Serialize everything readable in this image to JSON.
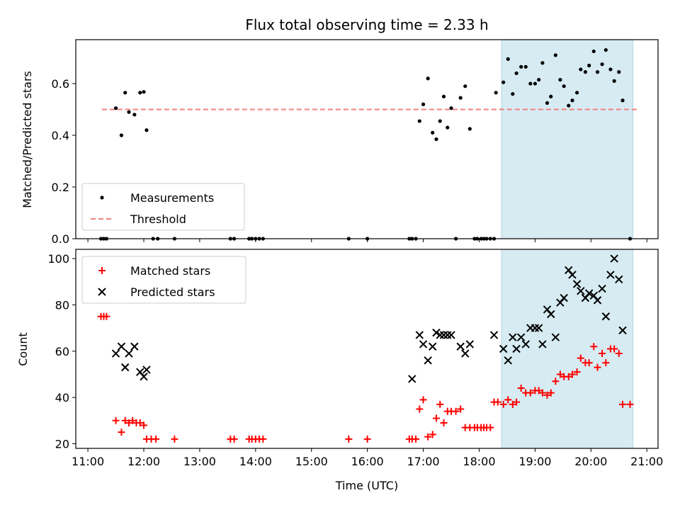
{
  "chart_data": [
    {
      "type": "scatter",
      "title": "Flux total observing time = 2.33 h",
      "xlabel": "",
      "ylabel": "Matched/Predicted stars",
      "xlim": [
        "10:47",
        "21:12"
      ],
      "ylim": [
        0,
        0.77
      ],
      "yticks": [
        0.0,
        0.2,
        0.4,
        0.6
      ],
      "ytick_labels": [
        "0.0",
        "0.2",
        "0.4",
        "0.6"
      ],
      "highlight_span": [
        "18:24",
        "20:45"
      ],
      "threshold": {
        "value": 0.5,
        "x_range": [
          "11:15",
          "20:50"
        ]
      },
      "legend_position": "lower-left",
      "series": [
        {
          "name": "Measurements",
          "marker": "dot",
          "color": "#000000",
          "points": [
            [
              "11:14",
              0
            ],
            [
              "11:17",
              0
            ],
            [
              "11:20",
              0
            ],
            [
              "11:30",
              0.505
            ],
            [
              "11:36",
              0.4
            ],
            [
              "11:40",
              0.565
            ],
            [
              "11:44",
              0.49
            ],
            [
              "11:50",
              0.48
            ],
            [
              "11:56",
              0.565
            ],
            [
              "12:00",
              0.568
            ],
            [
              "12:03",
              0.42
            ],
            [
              "12:10",
              0
            ],
            [
              "12:15",
              0
            ],
            [
              "12:33",
              0
            ],
            [
              "13:33",
              0
            ],
            [
              "13:37",
              0
            ],
            [
              "13:53",
              0
            ],
            [
              "13:56",
              0
            ],
            [
              "14:00",
              0
            ],
            [
              "14:04",
              0
            ],
            [
              "14:08",
              0
            ],
            [
              "15:40",
              0
            ],
            [
              "16:00",
              0
            ],
            [
              "16:45",
              0
            ],
            [
              "16:48",
              0
            ],
            [
              "16:52",
              0
            ],
            [
              "16:56",
              0.455
            ],
            [
              "17:00",
              0.52
            ],
            [
              "17:05",
              0.62
            ],
            [
              "17:10",
              0.41
            ],
            [
              "17:14",
              0.385
            ],
            [
              "17:18",
              0.455
            ],
            [
              "17:22",
              0.55
            ],
            [
              "17:26",
              0.43
            ],
            [
              "17:30",
              0.505
            ],
            [
              "17:35",
              0
            ],
            [
              "17:40",
              0.545
            ],
            [
              "17:45",
              0.59
            ],
            [
              "17:50",
              0.425
            ],
            [
              "17:55",
              0
            ],
            [
              "17:58",
              0
            ],
            [
              "18:02",
              0
            ],
            [
              "18:05",
              0
            ],
            [
              "18:08",
              0
            ],
            [
              "18:12",
              0
            ],
            [
              "18:16",
              0
            ],
            [
              "18:18",
              0.565
            ],
            [
              "18:26",
              0.605
            ],
            [
              "18:31",
              0.695
            ],
            [
              "18:36",
              0.56
            ],
            [
              "18:40",
              0.64
            ],
            [
              "18:45",
              0.665
            ],
            [
              "18:50",
              0.665
            ],
            [
              "18:55",
              0.6
            ],
            [
              "19:00",
              0.6
            ],
            [
              "19:04",
              0.615
            ],
            [
              "19:08",
              0.68
            ],
            [
              "19:13",
              0.525
            ],
            [
              "19:17",
              0.55
            ],
            [
              "19:22",
              0.71
            ],
            [
              "19:27",
              0.615
            ],
            [
              "19:31",
              0.59
            ],
            [
              "19:36",
              0.515
            ],
            [
              "19:40",
              0.535
            ],
            [
              "19:45",
              0.565
            ],
            [
              "19:49",
              0.655
            ],
            [
              "19:54",
              0.645
            ],
            [
              "19:58",
              0.67
            ],
            [
              "20:03",
              0.725
            ],
            [
              "20:07",
              0.645
            ],
            [
              "20:12",
              0.675
            ],
            [
              "20:16",
              0.73
            ],
            [
              "20:21",
              0.655
            ],
            [
              "20:25",
              0.61
            ],
            [
              "20:30",
              0.645
            ],
            [
              "20:34",
              0.535
            ],
            [
              "20:42",
              0
            ]
          ]
        },
        {
          "name": "Threshold",
          "marker": "dashed-line",
          "color": "#f08080"
        }
      ]
    },
    {
      "type": "scatter",
      "title": "",
      "xlabel": "Time (UTC)",
      "ylabel": "Count",
      "xlim": [
        "10:47",
        "21:12"
      ],
      "ylim": [
        18,
        104
      ],
      "xticks": [
        "11:00",
        "12:00",
        "13:00",
        "14:00",
        "15:00",
        "16:00",
        "17:00",
        "18:00",
        "19:00",
        "20:00",
        "21:00"
      ],
      "yticks": [
        20,
        40,
        60,
        80,
        100
      ],
      "highlight_span": [
        "18:24",
        "20:45"
      ],
      "legend_position": "upper-left",
      "series": [
        {
          "name": "Matched stars",
          "marker": "plus",
          "color": "#ff0000",
          "points": [
            [
              "11:14",
              75
            ],
            [
              "11:17",
              75
            ],
            [
              "11:20",
              75
            ],
            [
              "11:30",
              30
            ],
            [
              "11:36",
              25
            ],
            [
              "11:40",
              30
            ],
            [
              "11:44",
              29
            ],
            [
              "11:48",
              30
            ],
            [
              "11:52",
              29
            ],
            [
              "11:56",
              29
            ],
            [
              "12:00",
              28
            ],
            [
              "12:03",
              22
            ],
            [
              "12:08",
              22
            ],
            [
              "12:13",
              22
            ],
            [
              "12:33",
              22
            ],
            [
              "13:33",
              22
            ],
            [
              "13:37",
              22
            ],
            [
              "13:53",
              22
            ],
            [
              "13:56",
              22
            ],
            [
              "14:00",
              22
            ],
            [
              "14:04",
              22
            ],
            [
              "14:08",
              22
            ],
            [
              "15:40",
              22
            ],
            [
              "16:00",
              22
            ],
            [
              "16:45",
              22
            ],
            [
              "16:48",
              22
            ],
            [
              "16:52",
              22
            ],
            [
              "16:56",
              35
            ],
            [
              "17:00",
              39
            ],
            [
              "17:05",
              23
            ],
            [
              "17:10",
              24
            ],
            [
              "17:14",
              31
            ],
            [
              "17:18",
              37
            ],
            [
              "17:22",
              29
            ],
            [
              "17:26",
              34
            ],
            [
              "17:30",
              34
            ],
            [
              "17:35",
              34
            ],
            [
              "17:40",
              35
            ],
            [
              "17:45",
              27
            ],
            [
              "17:50",
              27
            ],
            [
              "17:55",
              27
            ],
            [
              "17:58",
              27
            ],
            [
              "18:02",
              27
            ],
            [
              "18:05",
              27
            ],
            [
              "18:08",
              27
            ],
            [
              "18:12",
              27
            ],
            [
              "18:16",
              38
            ],
            [
              "18:20",
              38
            ],
            [
              "18:26",
              37
            ],
            [
              "18:31",
              39
            ],
            [
              "18:36",
              37
            ],
            [
              "18:40",
              38
            ],
            [
              "18:45",
              44
            ],
            [
              "18:50",
              42
            ],
            [
              "18:55",
              42
            ],
            [
              "19:00",
              43
            ],
            [
              "19:04",
              43
            ],
            [
              "19:08",
              42
            ],
            [
              "19:13",
              41
            ],
            [
              "19:17",
              42
            ],
            [
              "19:22",
              47
            ],
            [
              "19:27",
              50
            ],
            [
              "19:31",
              49
            ],
            [
              "19:36",
              49
            ],
            [
              "19:40",
              50
            ],
            [
              "19:45",
              51
            ],
            [
              "19:49",
              57
            ],
            [
              "19:54",
              55
            ],
            [
              "19:58",
              55
            ],
            [
              "20:03",
              62
            ],
            [
              "20:07",
              53
            ],
            [
              "20:12",
              59
            ],
            [
              "20:16",
              55
            ],
            [
              "20:21",
              61
            ],
            [
              "20:25",
              61
            ],
            [
              "20:30",
              59
            ],
            [
              "20:34",
              37
            ],
            [
              "20:42",
              37
            ]
          ]
        },
        {
          "name": "Predicted stars",
          "marker": "x",
          "color": "#000000",
          "points": [
            [
              "11:30",
              59
            ],
            [
              "11:36",
              62
            ],
            [
              "11:40",
              53
            ],
            [
              "11:44",
              59
            ],
            [
              "11:50",
              62
            ],
            [
              "11:56",
              51
            ],
            [
              "12:00",
              49
            ],
            [
              "12:03",
              52
            ],
            [
              "16:48",
              48
            ],
            [
              "16:56",
              67
            ],
            [
              "17:00",
              63
            ],
            [
              "17:05",
              56
            ],
            [
              "17:10",
              62
            ],
            [
              "17:14",
              68
            ],
            [
              "17:18",
              67
            ],
            [
              "17:22",
              67
            ],
            [
              "17:26",
              67
            ],
            [
              "17:30",
              67
            ],
            [
              "17:40",
              62
            ],
            [
              "17:45",
              59
            ],
            [
              "17:50",
              63
            ],
            [
              "18:16",
              67
            ],
            [
              "18:26",
              61
            ],
            [
              "18:31",
              56
            ],
            [
              "18:36",
              66
            ],
            [
              "18:40",
              61
            ],
            [
              "18:45",
              66
            ],
            [
              "18:50",
              63
            ],
            [
              "18:55",
              70
            ],
            [
              "19:00",
              70
            ],
            [
              "19:04",
              70
            ],
            [
              "19:08",
              63
            ],
            [
              "19:13",
              78
            ],
            [
              "19:17",
              76
            ],
            [
              "19:22",
              66
            ],
            [
              "19:27",
              81
            ],
            [
              "19:31",
              83
            ],
            [
              "19:36",
              95
            ],
            [
              "19:40",
              93
            ],
            [
              "19:45",
              89
            ],
            [
              "19:49",
              86
            ],
            [
              "19:54",
              83
            ],
            [
              "19:58",
              85
            ],
            [
              "20:03",
              84
            ],
            [
              "20:07",
              82
            ],
            [
              "20:12",
              87
            ],
            [
              "20:16",
              75
            ],
            [
              "20:21",
              93
            ],
            [
              "20:25",
              100
            ],
            [
              "20:30",
              91
            ],
            [
              "20:34",
              69
            ]
          ]
        }
      ]
    }
  ]
}
